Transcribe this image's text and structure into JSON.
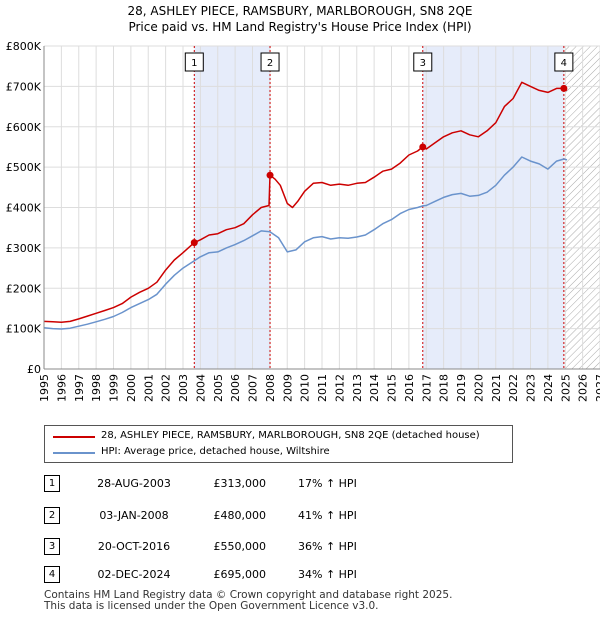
{
  "chart_data": {
    "type": "line",
    "title": "28, ASHLEY PIECE, RAMSBURY, MARLBOROUGH, SN8 2QE",
    "subtitle": "Price paid vs. HM Land Registry's House Price Index (HPI)",
    "xlim": [
      1995,
      2027
    ],
    "ylim": [
      0,
      800000
    ],
    "x_ticks": [
      "1995",
      "1996",
      "1997",
      "1998",
      "1999",
      "2000",
      "2001",
      "2002",
      "2003",
      "2004",
      "2005",
      "2006",
      "2007",
      "2008",
      "2009",
      "2010",
      "2011",
      "2012",
      "2013",
      "2014",
      "2015",
      "2016",
      "2017",
      "2018",
      "2019",
      "2020",
      "2021",
      "2022",
      "2023",
      "2024",
      "2025",
      "2026",
      "2027"
    ],
    "y_ticks": [
      {
        "value": 0,
        "label": "£0"
      },
      {
        "value": 100000,
        "label": "£100K"
      },
      {
        "value": 200000,
        "label": "£200K"
      },
      {
        "value": 300000,
        "label": "£300K"
      },
      {
        "value": 400000,
        "label": "£400K"
      },
      {
        "value": 500000,
        "label": "£500K"
      },
      {
        "value": 600000,
        "label": "£600K"
      },
      {
        "value": 700000,
        "label": "£700K"
      },
      {
        "value": 800000,
        "label": "£800K"
      }
    ],
    "series": [
      {
        "name": "28, ASHLEY PIECE, RAMSBURY, MARLBOROUGH, SN8 2QE (detached house)",
        "color": "#cc0000",
        "points": [
          [
            1995.0,
            118000
          ],
          [
            1995.5,
            117000
          ],
          [
            1996.0,
            116000
          ],
          [
            1996.5,
            118000
          ],
          [
            1997.0,
            124000
          ],
          [
            1997.5,
            131000
          ],
          [
            1998.0,
            138000
          ],
          [
            1998.5,
            145000
          ],
          [
            1999.0,
            152000
          ],
          [
            1999.5,
            162000
          ],
          [
            2000.0,
            178000
          ],
          [
            2000.5,
            190000
          ],
          [
            2001.0,
            200000
          ],
          [
            2001.5,
            215000
          ],
          [
            2002.0,
            245000
          ],
          [
            2002.5,
            270000
          ],
          [
            2003.0,
            288000
          ],
          [
            2003.65,
            313000
          ],
          [
            2004.0,
            320000
          ],
          [
            2004.5,
            332000
          ],
          [
            2005.0,
            335000
          ],
          [
            2005.5,
            345000
          ],
          [
            2006.0,
            350000
          ],
          [
            2006.5,
            360000
          ],
          [
            2007.0,
            382000
          ],
          [
            2007.5,
            400000
          ],
          [
            2007.95,
            405000
          ],
          [
            2008.01,
            480000
          ],
          [
            2008.3,
            470000
          ],
          [
            2008.6,
            455000
          ],
          [
            2009.0,
            410000
          ],
          [
            2009.3,
            400000
          ],
          [
            2009.6,
            415000
          ],
          [
            2010.0,
            440000
          ],
          [
            2010.5,
            460000
          ],
          [
            2011.0,
            462000
          ],
          [
            2011.5,
            455000
          ],
          [
            2012.0,
            458000
          ],
          [
            2012.5,
            455000
          ],
          [
            2013.0,
            460000
          ],
          [
            2013.5,
            462000
          ],
          [
            2014.0,
            475000
          ],
          [
            2014.5,
            490000
          ],
          [
            2015.0,
            495000
          ],
          [
            2015.5,
            510000
          ],
          [
            2016.0,
            530000
          ],
          [
            2016.5,
            540000
          ],
          [
            2016.8,
            550000
          ],
          [
            2017.0,
            545000
          ],
          [
            2017.5,
            560000
          ],
          [
            2018.0,
            575000
          ],
          [
            2018.5,
            585000
          ],
          [
            2019.0,
            590000
          ],
          [
            2019.5,
            580000
          ],
          [
            2020.0,
            575000
          ],
          [
            2020.5,
            590000
          ],
          [
            2021.0,
            610000
          ],
          [
            2021.5,
            650000
          ],
          [
            2022.0,
            670000
          ],
          [
            2022.5,
            710000
          ],
          [
            2023.0,
            700000
          ],
          [
            2023.5,
            690000
          ],
          [
            2024.0,
            685000
          ],
          [
            2024.5,
            695000
          ],
          [
            2024.92,
            695000
          ],
          [
            2025.1,
            690000
          ]
        ]
      },
      {
        "name": "HPI: Average price, detached house, Wiltshire",
        "color": "#6a93cc",
        "points": [
          [
            1995.0,
            102000
          ],
          [
            1995.5,
            100000
          ],
          [
            1996.0,
            99000
          ],
          [
            1996.5,
            101000
          ],
          [
            1997.0,
            106000
          ],
          [
            1997.5,
            111000
          ],
          [
            1998.0,
            117000
          ],
          [
            1998.5,
            123000
          ],
          [
            1999.0,
            130000
          ],
          [
            1999.5,
            140000
          ],
          [
            2000.0,
            152000
          ],
          [
            2000.5,
            162000
          ],
          [
            2001.0,
            172000
          ],
          [
            2001.5,
            185000
          ],
          [
            2002.0,
            210000
          ],
          [
            2002.5,
            232000
          ],
          [
            2003.0,
            250000
          ],
          [
            2003.65,
            268000
          ],
          [
            2004.0,
            278000
          ],
          [
            2004.5,
            288000
          ],
          [
            2005.0,
            290000
          ],
          [
            2005.5,
            300000
          ],
          [
            2006.0,
            308000
          ],
          [
            2006.5,
            318000
          ],
          [
            2007.0,
            330000
          ],
          [
            2007.5,
            342000
          ],
          [
            2008.0,
            340000
          ],
          [
            2008.5,
            325000
          ],
          [
            2009.0,
            290000
          ],
          [
            2009.5,
            295000
          ],
          [
            2010.0,
            315000
          ],
          [
            2010.5,
            325000
          ],
          [
            2011.0,
            328000
          ],
          [
            2011.5,
            322000
          ],
          [
            2012.0,
            325000
          ],
          [
            2012.5,
            324000
          ],
          [
            2013.0,
            327000
          ],
          [
            2013.5,
            332000
          ],
          [
            2014.0,
            345000
          ],
          [
            2014.5,
            360000
          ],
          [
            2015.0,
            370000
          ],
          [
            2015.5,
            385000
          ],
          [
            2016.0,
            395000
          ],
          [
            2016.5,
            400000
          ],
          [
            2016.8,
            404000
          ],
          [
            2017.0,
            405000
          ],
          [
            2017.5,
            415000
          ],
          [
            2018.0,
            425000
          ],
          [
            2018.5,
            432000
          ],
          [
            2019.0,
            435000
          ],
          [
            2019.5,
            428000
          ],
          [
            2020.0,
            430000
          ],
          [
            2020.5,
            438000
          ],
          [
            2021.0,
            455000
          ],
          [
            2021.5,
            480000
          ],
          [
            2022.0,
            500000
          ],
          [
            2022.5,
            525000
          ],
          [
            2023.0,
            515000
          ],
          [
            2023.5,
            508000
          ],
          [
            2024.0,
            495000
          ],
          [
            2024.5,
            515000
          ],
          [
            2024.92,
            520000
          ],
          [
            2025.1,
            518000
          ]
        ]
      }
    ],
    "sale_markers": [
      {
        "label": "1",
        "x": 2003.65,
        "y": 313000
      },
      {
        "label": "2",
        "x": 2008.01,
        "y": 480000
      },
      {
        "label": "3",
        "x": 2016.8,
        "y": 550000
      },
      {
        "label": "4",
        "x": 2024.92,
        "y": 695000
      }
    ],
    "ownership_shading": [
      [
        2003.65,
        2008.01
      ],
      [
        2016.8,
        2024.92
      ]
    ],
    "future_hatch_start": 2025.0
  },
  "legend": {
    "property_label": "28, ASHLEY PIECE, RAMSBURY, MARLBOROUGH, SN8 2QE (detached house)",
    "hpi_label": "HPI: Average price, detached house, Wiltshire"
  },
  "sales": [
    {
      "num": "1",
      "date": "28-AUG-2003",
      "price": "£313,000",
      "hpi": "17% ↑ HPI"
    },
    {
      "num": "2",
      "date": "03-JAN-2008",
      "price": "£480,000",
      "hpi": "41% ↑ HPI"
    },
    {
      "num": "3",
      "date": "20-OCT-2016",
      "price": "£550,000",
      "hpi": "36% ↑ HPI"
    },
    {
      "num": "4",
      "date": "02-DEC-2024",
      "price": "£695,000",
      "hpi": "34% ↑ HPI"
    }
  ],
  "footer": {
    "line1": "Contains HM Land Registry data © Crown copyright and database right 2025.",
    "line2": "This data is licensed under the Open Government Licence v3.0."
  }
}
